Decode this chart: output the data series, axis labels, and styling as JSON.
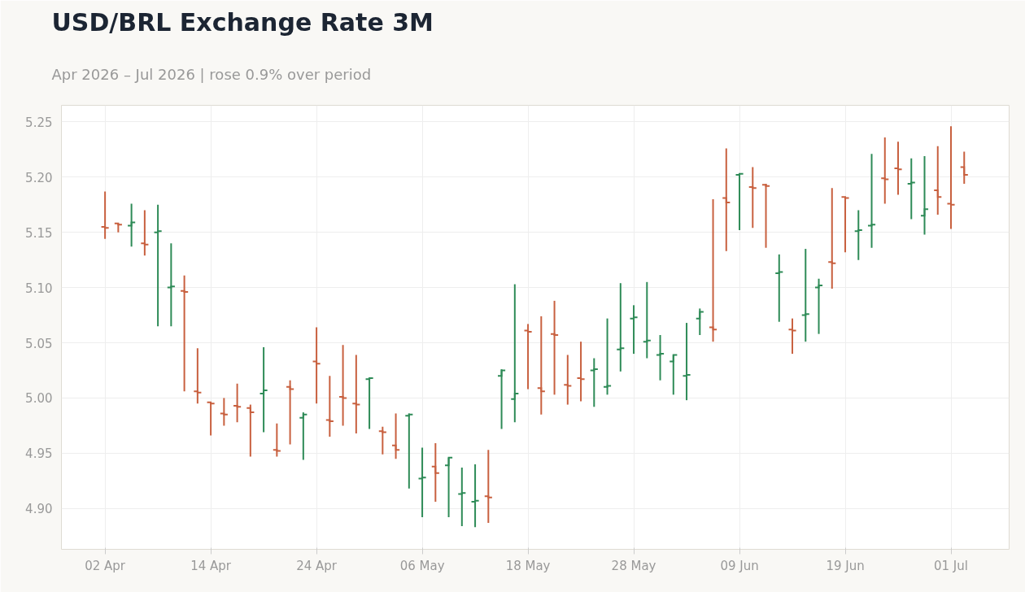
{
  "chart_data": {
    "type": "candlestick",
    "title": "USD/BRL Exchange Rate 3M",
    "subtitle": "Apr 2026 – Jul 2026 | rose 0.9% over period",
    "categories": [
      "02 Apr",
      null,
      null,
      null,
      null,
      null,
      null,
      null,
      "14 Apr",
      null,
      null,
      null,
      null,
      null,
      null,
      null,
      "24 Apr",
      null,
      null,
      null,
      null,
      null,
      null,
      null,
      "06 May",
      null,
      null,
      null,
      null,
      null,
      null,
      null,
      "18 May",
      null,
      null,
      null,
      null,
      null,
      null,
      null,
      "28 May",
      null,
      null,
      null,
      null,
      null,
      null,
      null,
      "09 Jun",
      null,
      null,
      null,
      null,
      null,
      null,
      null,
      "19 Jun",
      null,
      null,
      null,
      null,
      null,
      null,
      null,
      "01 Jul",
      null
    ],
    "ohlc": [
      [
        5.155,
        5.187,
        5.144,
        5.154
      ],
      [
        5.158,
        5.158,
        5.15,
        5.157
      ],
      [
        5.156,
        5.176,
        5.137,
        5.159
      ],
      [
        5.14,
        5.17,
        5.129,
        5.139
      ],
      [
        5.15,
        5.175,
        5.065,
        5.151
      ],
      [
        5.1,
        5.14,
        5.065,
        5.101
      ],
      [
        5.097,
        5.111,
        5.006,
        5.096
      ],
      [
        5.006,
        5.045,
        4.995,
        5.005
      ],
      [
        4.996,
        4.996,
        4.966,
        4.995
      ],
      [
        4.986,
        5.0,
        4.975,
        4.985
      ],
      [
        4.993,
        5.013,
        4.978,
        4.992
      ],
      [
        4.991,
        4.994,
        4.947,
        4.987
      ],
      [
        5.004,
        5.046,
        4.969,
        5.007
      ],
      [
        4.953,
        4.977,
        4.947,
        4.952
      ],
      [
        5.01,
        5.016,
        4.958,
        5.008
      ],
      [
        4.982,
        4.987,
        4.944,
        4.985
      ],
      [
        5.033,
        5.064,
        4.995,
        5.031
      ],
      [
        4.98,
        5.02,
        4.965,
        4.979
      ],
      [
        5.001,
        5.048,
        4.975,
        5.0
      ],
      [
        4.995,
        5.039,
        4.968,
        4.994
      ],
      [
        5.017,
        5.018,
        4.972,
        5.018
      ],
      [
        4.97,
        4.974,
        4.949,
        4.969
      ],
      [
        4.957,
        4.986,
        4.945,
        4.953
      ],
      [
        4.984,
        4.986,
        4.918,
        4.985
      ],
      [
        4.927,
        4.955,
        4.892,
        4.928
      ],
      [
        4.938,
        4.959,
        4.906,
        4.932
      ],
      [
        4.939,
        4.946,
        4.892,
        4.946
      ],
      [
        4.913,
        4.937,
        4.884,
        4.914
      ],
      [
        4.906,
        4.94,
        4.883,
        4.907
      ],
      [
        4.911,
        4.953,
        4.887,
        4.91
      ],
      [
        5.02,
        5.026,
        4.972,
        5.025
      ],
      [
        4.999,
        5.103,
        4.978,
        5.004
      ],
      [
        5.061,
        5.067,
        5.008,
        5.06
      ],
      [
        5.009,
        5.074,
        4.985,
        5.006
      ],
      [
        5.058,
        5.088,
        5.003,
        5.057
      ],
      [
        5.012,
        5.039,
        4.994,
        5.011
      ],
      [
        5.018,
        5.051,
        4.997,
        5.017
      ],
      [
        5.025,
        5.036,
        4.992,
        5.026
      ],
      [
        5.01,
        5.072,
        5.003,
        5.011
      ],
      [
        5.044,
        5.104,
        5.024,
        5.045
      ],
      [
        5.072,
        5.084,
        5.04,
        5.073
      ],
      [
        5.051,
        5.105,
        5.036,
        5.052
      ],
      [
        5.039,
        5.057,
        5.016,
        5.04
      ],
      [
        5.033,
        5.039,
        5.003,
        5.039
      ],
      [
        5.02,
        5.068,
        4.998,
        5.021
      ],
      [
        5.072,
        5.081,
        5.057,
        5.078
      ],
      [
        5.064,
        5.18,
        5.051,
        5.062
      ],
      [
        5.181,
        5.226,
        5.133,
        5.177
      ],
      [
        5.202,
        5.203,
        5.152,
        5.203
      ],
      [
        5.191,
        5.209,
        5.154,
        5.19
      ],
      [
        5.193,
        5.194,
        5.136,
        5.192
      ],
      [
        5.113,
        5.13,
        5.069,
        5.114
      ],
      [
        5.062,
        5.072,
        5.04,
        5.061
      ],
      [
        5.075,
        5.135,
        5.051,
        5.076
      ],
      [
        5.1,
        5.108,
        5.058,
        5.102
      ],
      [
        5.123,
        5.19,
        5.099,
        5.122
      ],
      [
        5.182,
        5.182,
        5.132,
        5.181
      ],
      [
        5.151,
        5.17,
        5.125,
        5.152
      ],
      [
        5.156,
        5.221,
        5.136,
        5.157
      ],
      [
        5.199,
        5.236,
        5.176,
        5.198
      ],
      [
        5.208,
        5.232,
        5.184,
        5.207
      ],
      [
        5.194,
        5.217,
        5.162,
        5.195
      ],
      [
        5.165,
        5.219,
        5.148,
        5.171
      ],
      [
        5.188,
        5.228,
        5.166,
        5.182
      ],
      [
        5.176,
        5.246,
        5.153,
        5.175
      ],
      [
        5.209,
        5.223,
        5.194,
        5.202
      ]
    ],
    "colors": [
      "#c8603f",
      "#c8603f",
      "#2e8b57",
      "#c8603f",
      "#2e8b57",
      "#2e8b57",
      "#c8603f",
      "#c8603f",
      "#c8603f",
      "#c8603f",
      "#c8603f",
      "#c8603f",
      "#2e8b57",
      "#c8603f",
      "#c8603f",
      "#2e8b57",
      "#c8603f",
      "#c8603f",
      "#c8603f",
      "#c8603f",
      "#2e8b57",
      "#c8603f",
      "#c8603f",
      "#2e8b57",
      "#2e8b57",
      "#c8603f",
      "#2e8b57",
      "#2e8b57",
      "#2e8b57",
      "#c8603f",
      "#2e8b57",
      "#2e8b57",
      "#c8603f",
      "#c8603f",
      "#c8603f",
      "#c8603f",
      "#c8603f",
      "#2e8b57",
      "#2e8b57",
      "#2e8b57",
      "#2e8b57",
      "#2e8b57",
      "#2e8b57",
      "#2e8b57",
      "#2e8b57",
      "#2e8b57",
      "#c8603f",
      "#c8603f",
      "#2e8b57",
      "#c8603f",
      "#c8603f",
      "#2e8b57",
      "#c8603f",
      "#2e8b57",
      "#2e8b57",
      "#c8603f",
      "#c8603f",
      "#2e8b57",
      "#2e8b57",
      "#c8603f",
      "#c8603f",
      "#2e8b57",
      "#2e8b57",
      "#c8603f",
      "#c8603f",
      "#c8603f"
    ],
    "ylim": [
      4.863,
      5.265
    ],
    "yticks": [
      {
        "value": 4.9,
        "label": "4.90"
      },
      4.95,
      {
        "value": 5.0,
        "label": "5.00"
      },
      5.05,
      {
        "value": 5.1,
        "label": "5.10"
      },
      5.15,
      {
        "value": 5.2,
        "label": "5.20"
      },
      5.25
    ],
    "grid": true
  }
}
